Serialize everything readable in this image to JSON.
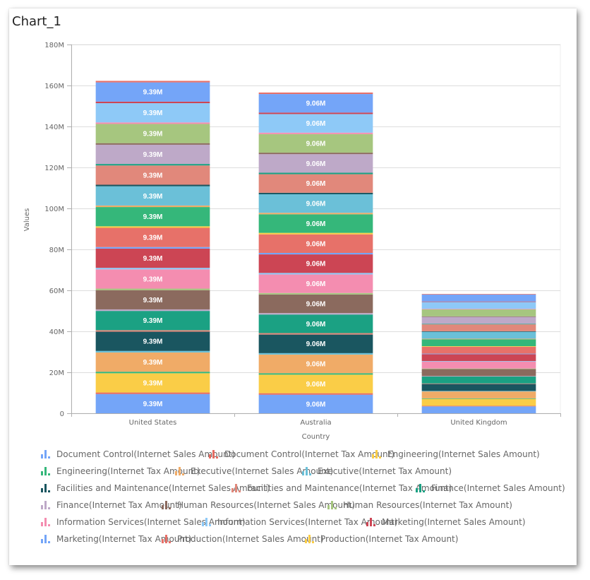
{
  "panel": {
    "title": "Chart_1"
  },
  "chart_data": {
    "type": "bar",
    "stacked": true,
    "title": "Chart_1",
    "xlabel": "Country",
    "ylabel": "Values",
    "ylim": [
      0,
      180000000
    ],
    "yticks": [
      0,
      20000000,
      40000000,
      60000000,
      80000000,
      100000000,
      120000000,
      140000000,
      160000000,
      180000000
    ],
    "ytick_labels": [
      "0",
      "20M",
      "40M",
      "60M",
      "80M",
      "100M",
      "120M",
      "140M",
      "160M",
      "180M"
    ],
    "grid": true,
    "categories": [
      "United States",
      "Australia",
      "United Kingdom"
    ],
    "sales_per_department": [
      9390000,
      9060000,
      3370000
    ],
    "tax_rate_of_sales": 0.08,
    "sales_data_labels": [
      "9.39M",
      "9.06M",
      ""
    ],
    "series_stack_order_bottom_to_top": [
      {
        "name": "Document Control(Internet Sales Amount)",
        "kind": "sales",
        "color": "#74A5F8"
      },
      {
        "name": "Document Control(Internet Tax Amount)",
        "kind": "tax",
        "color": "#E56C62"
      },
      {
        "name": "Engineering(Internet Sales Amount)",
        "kind": "sales",
        "color": "#FACD47"
      },
      {
        "name": "Engineering(Internet Tax Amount)",
        "kind": "tax",
        "color": "#35B77A"
      },
      {
        "name": "Executive(Internet Sales Amount)",
        "kind": "sales",
        "color": "#F0AB67"
      },
      {
        "name": "Executive(Internet Tax Amount)",
        "kind": "tax",
        "color": "#6BC0D8"
      },
      {
        "name": "Facilities and Maintenance(Internet Sales Amount)",
        "kind": "sales",
        "color": "#1A5660"
      },
      {
        "name": "Facilities and Maintenance(Internet Tax Amount)",
        "kind": "tax",
        "color": "#E1887B"
      },
      {
        "name": "Finance(Internet Sales Amount)",
        "kind": "sales",
        "color": "#1BA183"
      },
      {
        "name": "Finance(Internet Tax Amount)",
        "kind": "tax",
        "color": "#BEA9C8"
      },
      {
        "name": "Human Resources(Internet Sales Amount)",
        "kind": "sales",
        "color": "#8B6A5E"
      },
      {
        "name": "Human Resources(Internet Tax Amount)",
        "kind": "tax",
        "color": "#A6C67F"
      },
      {
        "name": "Information Services(Internet Sales Amount)",
        "kind": "sales",
        "color": "#F48DB0"
      },
      {
        "name": "Information Services(Internet Tax Amount)",
        "kind": "tax",
        "color": "#8EC9F7"
      },
      {
        "name": "Marketing(Internet Sales Amount)",
        "kind": "sales",
        "color": "#CC4554"
      },
      {
        "name": "Marketing(Internet Tax Amount)",
        "kind": "tax",
        "color": "#74A5F8"
      },
      {
        "name": "Production(Internet Sales Amount)",
        "kind": "sales",
        "color": "#E77169"
      },
      {
        "name": "Production(Internet Tax Amount)",
        "kind": "tax",
        "color": "#FACD47"
      },
      {
        "name": "",
        "kind": "sales",
        "color": "#35B77A"
      },
      {
        "name": "",
        "kind": "tax",
        "color": "#F0AB67"
      },
      {
        "name": "",
        "kind": "sales",
        "color": "#6BC0D8"
      },
      {
        "name": "",
        "kind": "tax",
        "color": "#1A5660"
      },
      {
        "name": "",
        "kind": "sales",
        "color": "#E1887B"
      },
      {
        "name": "",
        "kind": "tax",
        "color": "#1BA183"
      },
      {
        "name": "",
        "kind": "sales",
        "color": "#BEA9C8"
      },
      {
        "name": "",
        "kind": "tax",
        "color": "#8B6A5E"
      },
      {
        "name": "",
        "kind": "sales",
        "color": "#A6C67F"
      },
      {
        "name": "",
        "kind": "tax",
        "color": "#F48DB0"
      },
      {
        "name": "",
        "kind": "sales",
        "color": "#8EC9F7"
      },
      {
        "name": "",
        "kind": "tax",
        "color": "#CC4554"
      },
      {
        "name": "",
        "kind": "sales",
        "color": "#74A5F8"
      },
      {
        "name": "",
        "kind": "tax",
        "color": "#E77169"
      }
    ],
    "legend_position": "bottom",
    "legend": [
      {
        "label": "Document Control(Internet Sales Amount)",
        "color": "#74A5F8"
      },
      {
        "label": "Document Control(Internet Tax Amount)",
        "color": "#E56C62"
      },
      {
        "label": "Engineering(Internet Sales Amount)",
        "color": "#FACD47"
      },
      {
        "label": "Engineering(Internet Tax Amount)",
        "color": "#35B77A"
      },
      {
        "label": "Executive(Internet Sales Amount)",
        "color": "#F0AB67"
      },
      {
        "label": "Executive(Internet Tax Amount)",
        "color": "#6BC0D8"
      },
      {
        "label": "Facilities and Maintenance(Internet Sales Amount)",
        "color": "#1A5660"
      },
      {
        "label": "Facilities and Maintenance(Internet Tax Amount)",
        "color": "#E1887B"
      },
      {
        "label": "Finance(Internet Sales Amount)",
        "color": "#1BA183"
      },
      {
        "label": "Finance(Internet Tax Amount)",
        "color": "#BEA9C8"
      },
      {
        "label": "Human Resources(Internet Sales Amount)",
        "color": "#8B6A5E"
      },
      {
        "label": "Human Resources(Internet Tax Amount)",
        "color": "#A6C67F"
      },
      {
        "label": "Information Services(Internet Sales Amount)",
        "color": "#F48DB0"
      },
      {
        "label": "Information Services(Internet Tax Amount)",
        "color": "#8EC9F7"
      },
      {
        "label": "Marketing(Internet Sales Amount)",
        "color": "#CC4554"
      },
      {
        "label": "Marketing(Internet Tax Amount)",
        "color": "#74A5F8"
      },
      {
        "label": "Production(Internet Sales Amount)",
        "color": "#E77169"
      },
      {
        "label": "Production(Internet Tax Amount)",
        "color": "#FACD47"
      }
    ]
  }
}
